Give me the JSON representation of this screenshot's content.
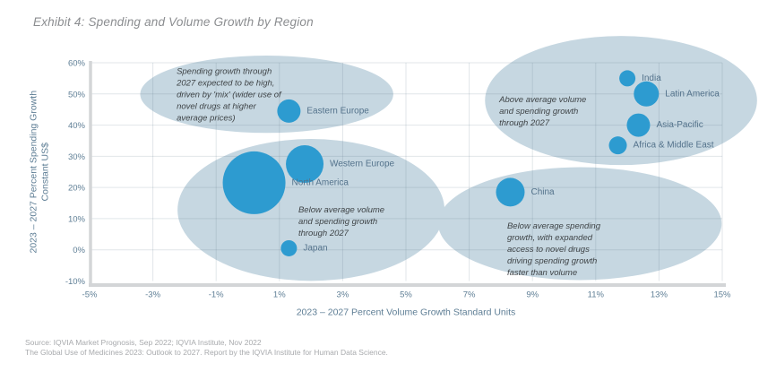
{
  "title": "Exhibit 4: Spending and Volume Growth by Region",
  "footer": {
    "line1": "Source: IQVIA Market Prognosis, Sep 2022; IQVIA Institute, Nov 2022",
    "line2": "The Global Use of Medicines 2023: Outlook to 2027. Report by the IQVIA Institute for Human Data Science."
  },
  "colors": {
    "bubble": "#2d9bd0",
    "cluster": "#c6d7e1",
    "grid": "#5a7486",
    "axis_line": "#d3d5d7",
    "axis_text": "#5e7e95",
    "label_text": "#53728b",
    "annotation_text": "#3f4447",
    "title_text": "#8b8d90",
    "footer_text": "#a8aaad"
  },
  "chart_data": {
    "type": "scatter",
    "subtype": "bubble",
    "title": "Exhibit 4: Spending and Volume Growth by Region",
    "xlabel": "2023 – 2027 Percent Volume Growth Standard Units",
    "ylabel_lines": [
      "2023 – 2027 Percent Spending Growth",
      "Constant US$"
    ],
    "xlim": [
      -5,
      15
    ],
    "ylim": [
      -10,
      60
    ],
    "x_ticks": [
      -5,
      -3,
      -1,
      1,
      3,
      5,
      7,
      9,
      11,
      13,
      15
    ],
    "y_ticks": [
      -10,
      0,
      10,
      20,
      30,
      40,
      50,
      60
    ],
    "tick_suffix": "%",
    "grid": true,
    "series": [
      {
        "name": "Eastern Europe",
        "x": 1.3,
        "y": 44.5,
        "r": 13
      },
      {
        "name": "Western Europe",
        "x": 1.8,
        "y": 27.5,
        "r": 21
      },
      {
        "name": "North America",
        "x": 0.2,
        "y": 21.5,
        "r": 35
      },
      {
        "name": "Japan",
        "x": 1.3,
        "y": 0.5,
        "r": 9
      },
      {
        "name": "China",
        "x": 8.3,
        "y": 18.5,
        "r": 16
      },
      {
        "name": "India",
        "x": 12.0,
        "y": 55.0,
        "r": 9
      },
      {
        "name": "Latin America",
        "x": 12.6,
        "y": 50.0,
        "r": 14
      },
      {
        "name": "Asia-Pacific",
        "x": 12.35,
        "y": 40.0,
        "r": 13
      },
      {
        "name": "Africa & Middle East",
        "x": 11.7,
        "y": 33.5,
        "r": 10
      }
    ],
    "clusters": [
      {
        "name": "eastern-europe-note",
        "cx": 0.6,
        "cy": 49.9,
        "rx": 4.0,
        "ry": 12.4,
        "note_x": -2.25,
        "note_y": 59.0,
        "note_lines": [
          "Spending growth through",
          "2027 expected to be high,",
          "driven by 'mix' (wider use of",
          "novel drugs at higher",
          "average prices)"
        ]
      },
      {
        "name": "above-average-note",
        "cx": 11.8,
        "cy": 47.9,
        "rx": 4.3,
        "ry": 20.7,
        "note_x": 7.95,
        "note_y": 50.0,
        "note_lines": [
          "Above average volume",
          "and spending growth",
          "through 2027"
        ]
      },
      {
        "name": "below-average-note",
        "cx": 2.0,
        "cy": 12.8,
        "rx": 4.22,
        "ry": 22.75,
        "note_x": 1.6,
        "note_y": 14.6,
        "note_lines": [
          "Below average volume",
          "and spending growth",
          "through 2027"
        ]
      },
      {
        "name": "china-note",
        "cx": 10.5,
        "cy": 8.4,
        "rx": 4.48,
        "ry": 18.1,
        "note_x": 8.2,
        "note_y": 9.4,
        "note_lines": [
          "Below average spending",
          "growth, with expanded",
          "access to novel drugs",
          "driving spending growth",
          "faster than volume"
        ]
      }
    ]
  }
}
